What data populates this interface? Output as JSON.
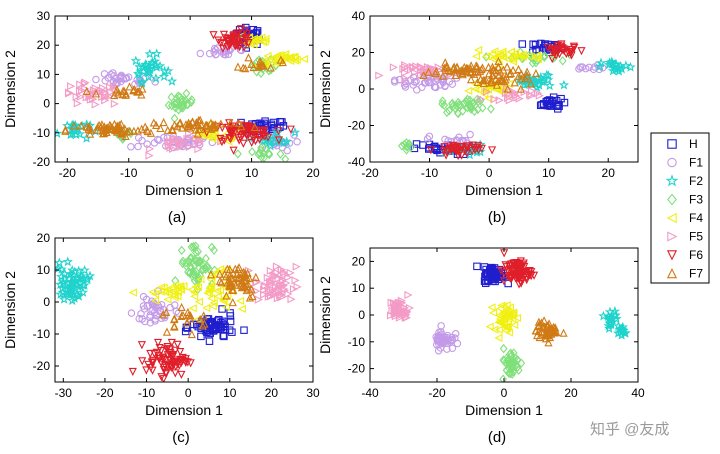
{
  "chart_data": [
    {
      "panel": "(a)",
      "type": "scatter",
      "xlabel": "Dimension 1",
      "ylabel": "Dimension 2",
      "xlim": [
        -22,
        20
      ],
      "ylim": [
        -20,
        30
      ],
      "xticks": [
        "-20",
        "-10",
        "0",
        "10",
        "20"
      ],
      "yticks": [
        "-20",
        "-10",
        "0",
        "10",
        "20",
        "30"
      ],
      "clusters": [
        {
          "c": "H",
          "x": 9.5,
          "y": 23,
          "sx": 1.2,
          "sy": 1.5,
          "n": 40
        },
        {
          "c": "H",
          "x": 12,
          "y": -8,
          "sx": 1.8,
          "sy": 1.2,
          "n": 30
        },
        {
          "c": "F1",
          "x": -11,
          "y": 8,
          "sx": 2.5,
          "sy": 1.0,
          "n": 30
        },
        {
          "c": "F1",
          "x": -3,
          "y": -13,
          "sx": 3.5,
          "sy": 1.2,
          "n": 40
        },
        {
          "c": "F1",
          "x": 6,
          "y": 18,
          "sx": 2.0,
          "sy": 1.0,
          "n": 20
        },
        {
          "c": "F1",
          "x": 14,
          "y": -13,
          "sx": 2.0,
          "sy": 1.5,
          "n": 20
        },
        {
          "c": "F2",
          "x": -6.5,
          "y": 12,
          "sx": 1.3,
          "sy": 2.2,
          "n": 30
        },
        {
          "c": "F2",
          "x": -19,
          "y": -9,
          "sx": 1.3,
          "sy": 1.8,
          "n": 20
        },
        {
          "c": "F2",
          "x": 14,
          "y": -12,
          "sx": 1.5,
          "sy": 1.2,
          "n": 15
        },
        {
          "c": "F3",
          "x": -1.5,
          "y": 0,
          "sx": 1.0,
          "sy": 1.5,
          "n": 25
        },
        {
          "c": "F3",
          "x": -11,
          "y": -10,
          "sx": 1.0,
          "sy": 1.0,
          "n": 15
        },
        {
          "c": "F3",
          "x": 12,
          "y": 13,
          "sx": 1.2,
          "sy": 1.0,
          "n": 15
        },
        {
          "c": "F3",
          "x": 11,
          "y": -17,
          "sx": 2.0,
          "sy": 0.8,
          "n": 15
        },
        {
          "c": "F4",
          "x": 15,
          "y": 15,
          "sx": 2.0,
          "sy": 1.0,
          "n": 30
        },
        {
          "c": "F4",
          "x": 10.5,
          "y": 22,
          "sx": 1.5,
          "sy": 1.5,
          "n": 20
        },
        {
          "c": "F4",
          "x": 4,
          "y": -11,
          "sx": 2.5,
          "sy": 1.2,
          "n": 25
        },
        {
          "c": "F5",
          "x": -16,
          "y": 3,
          "sx": 2.5,
          "sy": 2.0,
          "n": 40
        },
        {
          "c": "F5",
          "x": -1,
          "y": -14,
          "sx": 2.5,
          "sy": 1.5,
          "n": 25
        },
        {
          "c": "F6",
          "x": 7.5,
          "y": 22,
          "sx": 1.3,
          "sy": 1.5,
          "n": 45
        },
        {
          "c": "F6",
          "x": 8.5,
          "y": -10,
          "sx": 2.5,
          "sy": 1.5,
          "n": 70
        },
        {
          "c": "F7",
          "x": -13,
          "y": -9,
          "sx": 3.5,
          "sy": 1.2,
          "n": 60
        },
        {
          "c": "F7",
          "x": 2,
          "y": -7.5,
          "sx": 4.0,
          "sy": 1.0,
          "n": 50
        },
        {
          "c": "F7",
          "x": -11,
          "y": 4,
          "sx": 2.0,
          "sy": 1.0,
          "n": 20
        },
        {
          "c": "F7",
          "x": 11.5,
          "y": 14,
          "sx": 1.5,
          "sy": 1.2,
          "n": 15
        }
      ]
    },
    {
      "panel": "(b)",
      "type": "scatter",
      "xlabel": "Dimension 1",
      "ylabel": "Dimension 2",
      "xlim": [
        -20,
        25
      ],
      "ylim": [
        -40,
        40
      ],
      "xticks": [
        "-20",
        "-10",
        "0",
        "10",
        "20"
      ],
      "yticks": [
        "-40",
        "-20",
        "0",
        "20",
        "40"
      ],
      "clusters": [
        {
          "c": "H",
          "x": 9.5,
          "y": 23,
          "sx": 1.5,
          "sy": 1.5,
          "n": 25
        },
        {
          "c": "H",
          "x": 10,
          "y": -8,
          "sx": 1.3,
          "sy": 1.5,
          "n": 25
        },
        {
          "c": "H",
          "x": -8,
          "y": -33,
          "sx": 2.5,
          "sy": 1.5,
          "n": 30
        },
        {
          "c": "F1",
          "x": -11,
          "y": 4,
          "sx": 2.5,
          "sy": 2.0,
          "n": 40
        },
        {
          "c": "F1",
          "x": -6,
          "y": -28,
          "sx": 2.0,
          "sy": 1.5,
          "n": 15
        },
        {
          "c": "F1",
          "x": 17,
          "y": 11,
          "sx": 1.5,
          "sy": 1.0,
          "n": 10
        },
        {
          "c": "F2",
          "x": 21.5,
          "y": 12,
          "sx": 1.3,
          "sy": 1.5,
          "n": 20
        },
        {
          "c": "F2",
          "x": 8,
          "y": 4,
          "sx": 2.0,
          "sy": 2.0,
          "n": 30
        },
        {
          "c": "F2",
          "x": -4,
          "y": -33,
          "sx": 1.5,
          "sy": 1.2,
          "n": 15
        },
        {
          "c": "F3",
          "x": -4,
          "y": -9,
          "sx": 2.0,
          "sy": 2.0,
          "n": 35
        },
        {
          "c": "F3",
          "x": 7,
          "y": 17,
          "sx": 2.5,
          "sy": 1.5,
          "n": 25
        },
        {
          "c": "F3",
          "x": -14,
          "y": -31,
          "sx": 1.0,
          "sy": 1.0,
          "n": 10
        },
        {
          "c": "F4",
          "x": 3,
          "y": 18,
          "sx": 3.0,
          "sy": 1.5,
          "n": 30
        },
        {
          "c": "F4",
          "x": 1,
          "y": 0,
          "sx": 2.0,
          "sy": 2.0,
          "n": 25
        },
        {
          "c": "F5",
          "x": -10,
          "y": 10,
          "sx": 3.0,
          "sy": 1.5,
          "n": 40
        },
        {
          "c": "F5",
          "x": 4,
          "y": -3,
          "sx": 2.5,
          "sy": 1.5,
          "n": 20
        },
        {
          "c": "F6",
          "x": 12.5,
          "y": 21,
          "sx": 1.5,
          "sy": 1.5,
          "n": 30
        },
        {
          "c": "F6",
          "x": -5,
          "y": -33,
          "sx": 2.0,
          "sy": 1.5,
          "n": 40
        },
        {
          "c": "F7",
          "x": -3,
          "y": 10,
          "sx": 4.0,
          "sy": 2.0,
          "n": 60
        },
        {
          "c": "F7",
          "x": 2,
          "y": 5,
          "sx": 3.0,
          "sy": 2.0,
          "n": 30
        }
      ]
    },
    {
      "panel": "(c)",
      "type": "scatter",
      "xlabel": "Dimension 1",
      "ylabel": "Dimension 2",
      "xlim": [
        -32,
        30
      ],
      "ylim": [
        -25,
        20
      ],
      "xticks": [
        "-30",
        "-20",
        "-10",
        "0",
        "10",
        "20",
        "30"
      ],
      "yticks": [
        "-20",
        "-10",
        "0",
        "10",
        "20"
      ],
      "clusters": [
        {
          "c": "H",
          "x": 6,
          "y": -8,
          "sx": 2.5,
          "sy": 2.0,
          "n": 60
        },
        {
          "c": "F1",
          "x": -8,
          "y": -3,
          "sx": 2.5,
          "sy": 2.5,
          "n": 40
        },
        {
          "c": "F2",
          "x": -28,
          "y": 6,
          "sx": 2.0,
          "sy": 2.5,
          "n": 60
        },
        {
          "c": "F3",
          "x": 2,
          "y": 12,
          "sx": 2.0,
          "sy": 3.5,
          "n": 55
        },
        {
          "c": "F4",
          "x": -5,
          "y": 3,
          "sx": 3.5,
          "sy": 1.5,
          "n": 30
        },
        {
          "c": "F4",
          "x": 6,
          "y": 2,
          "sx": 2.5,
          "sy": 4.0,
          "n": 35
        },
        {
          "c": "F5",
          "x": 21,
          "y": 5,
          "sx": 2.5,
          "sy": 3.0,
          "n": 60
        },
        {
          "c": "F6",
          "x": -5,
          "y": -18,
          "sx": 2.5,
          "sy": 2.5,
          "n": 75
        },
        {
          "c": "F7",
          "x": 12,
          "y": 7,
          "sx": 2.5,
          "sy": 3.0,
          "n": 55
        },
        {
          "c": "F7",
          "x": 0,
          "y": -5,
          "sx": 3.0,
          "sy": 2.0,
          "n": 20
        }
      ]
    },
    {
      "panel": "(d)",
      "type": "scatter",
      "xlabel": "Dimension 1",
      "ylabel": "Dimension 2",
      "xlim": [
        -40,
        40
      ],
      "ylim": [
        -25,
        25
      ],
      "xticks": [
        "-40",
        "-20",
        "0",
        "20",
        "40"
      ],
      "yticks": [
        "-20",
        "-10",
        "0",
        "10",
        "20"
      ],
      "clusters": [
        {
          "c": "H",
          "x": -3,
          "y": 15,
          "sx": 1.5,
          "sy": 1.5,
          "n": 70
        },
        {
          "c": "F1",
          "x": -18,
          "y": -9,
          "sx": 1.5,
          "sy": 2.0,
          "n": 45
        },
        {
          "c": "F2",
          "x": 32,
          "y": -1,
          "sx": 1.0,
          "sy": 1.5,
          "n": 20
        },
        {
          "c": "F2",
          "x": 35,
          "y": -6,
          "sx": 0.8,
          "sy": 1.0,
          "n": 12
        },
        {
          "c": "F3",
          "x": 2,
          "y": -18,
          "sx": 1.5,
          "sy": 2.5,
          "n": 40
        },
        {
          "c": "F4",
          "x": 0,
          "y": -1,
          "sx": 1.5,
          "sy": 2.5,
          "n": 45
        },
        {
          "c": "F5",
          "x": -31,
          "y": 2,
          "sx": 1.5,
          "sy": 2.0,
          "n": 45
        },
        {
          "c": "F6",
          "x": 4,
          "y": 16,
          "sx": 2.0,
          "sy": 2.0,
          "n": 80
        },
        {
          "c": "F7",
          "x": 13,
          "y": -6,
          "sx": 1.7,
          "sy": 1.7,
          "n": 50
        }
      ]
    }
  ],
  "legend": [
    {
      "key": "H",
      "label": "H",
      "color": "#1f1fcf",
      "marker": "square"
    },
    {
      "key": "F1",
      "label": "F1",
      "color": "#c39ae8",
      "marker": "circle"
    },
    {
      "key": "F2",
      "label": "F2",
      "color": "#1fd3cc",
      "marker": "star"
    },
    {
      "key": "F3",
      "label": "F3",
      "color": "#7fe07a",
      "marker": "diamond"
    },
    {
      "key": "F4",
      "label": "F4",
      "color": "#f0f010",
      "marker": "triangle-left"
    },
    {
      "key": "F5",
      "label": "F5",
      "color": "#f39ac6",
      "marker": "triangle-right"
    },
    {
      "key": "F6",
      "label": "F6",
      "color": "#e01e2a",
      "marker": "triangle-down"
    },
    {
      "key": "F7",
      "label": "F7",
      "color": "#d07a14",
      "marker": "triangle-up"
    }
  ],
  "watermark": "知乎 @友成"
}
